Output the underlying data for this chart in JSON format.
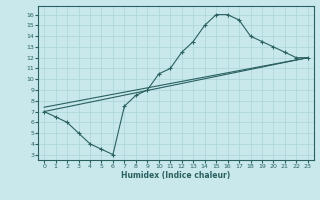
{
  "xlabel": "Humidex (Indice chaleur)",
  "bg_color": "#c8e8ec",
  "line_color": "#2a6060",
  "grid_color": "#b0d8dc",
  "xlim": [
    -0.5,
    23.5
  ],
  "ylim": [
    2.5,
    16.8
  ],
  "xticks": [
    0,
    1,
    2,
    3,
    4,
    5,
    6,
    7,
    8,
    9,
    10,
    11,
    12,
    13,
    14,
    15,
    16,
    17,
    18,
    19,
    20,
    21,
    22,
    23
  ],
  "yticks": [
    3,
    4,
    5,
    6,
    7,
    8,
    9,
    10,
    11,
    12,
    13,
    14,
    15,
    16
  ],
  "curve_x": [
    0,
    1,
    2,
    3,
    4,
    5,
    6,
    7,
    8,
    9,
    10,
    11,
    12,
    13,
    14,
    15,
    16,
    17,
    18,
    19,
    20,
    21,
    22,
    23
  ],
  "curve_y": [
    7.0,
    6.5,
    6.0,
    5.0,
    4.0,
    3.5,
    3.0,
    7.5,
    8.5,
    9.0,
    10.5,
    11.0,
    12.5,
    13.5,
    15.0,
    16.0,
    16.0,
    15.5,
    14.0,
    13.5,
    13.0,
    12.5,
    12.0,
    12.0
  ],
  "line2_x": [
    0,
    23
  ],
  "line2_y": [
    7.0,
    12.0
  ],
  "line3_x": [
    0,
    23
  ],
  "line3_y": [
    7.0,
    12.0
  ]
}
